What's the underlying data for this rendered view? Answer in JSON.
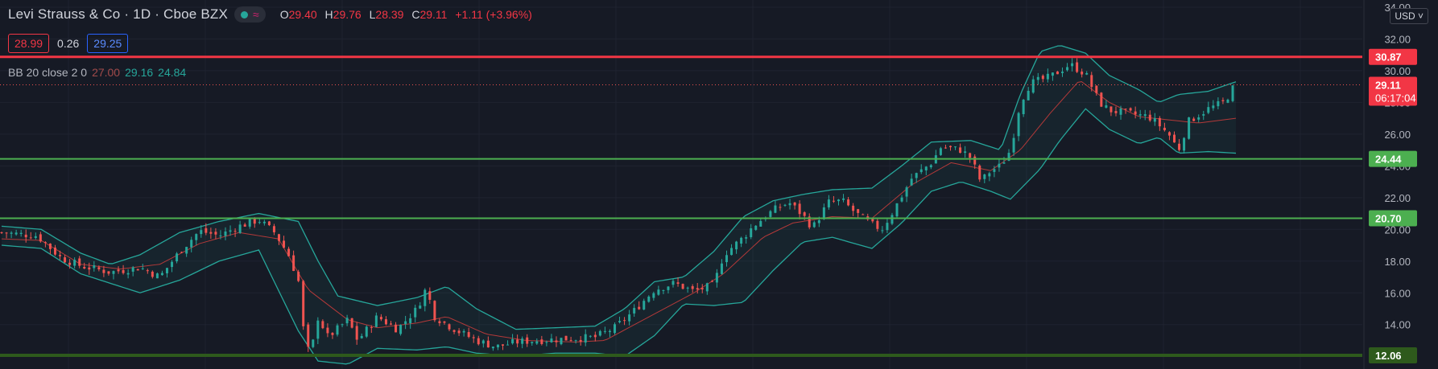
{
  "header": {
    "symbol": "Levi Strauss & Co · 1D · Cboe BZX",
    "status_icon": "market-status-dot-icon",
    "wave_icon": "wave-icon",
    "o_label": "O",
    "o_value": "29.40",
    "h_label": "H",
    "h_value": "29.76",
    "l_label": "L",
    "l_value": "28.39",
    "c_label": "C",
    "c_value": "29.11",
    "change": "+1.11 (+3.96%)"
  },
  "quote": {
    "bid": "28.99",
    "spread": "0.26",
    "ask": "29.25"
  },
  "indicator": {
    "name": "BB 20 close 2 0",
    "basis": "27.00",
    "upper": "29.16",
    "lower": "24.84"
  },
  "currency": "USD",
  "colors": {
    "background": "#161a25",
    "up": "#26a69a",
    "down": "#ef5350",
    "resistance": "#f23645",
    "support": "#4caf50",
    "support_dark": "#2e5a1c",
    "bb_band": "#26a69a",
    "bb_basis": "#b33939"
  },
  "price_tags": [
    {
      "value": 30.87,
      "label": "30.87",
      "color": "#f23645",
      "kind": "line"
    },
    {
      "value": 24.44,
      "label": "24.44",
      "color": "#4caf50",
      "kind": "line"
    },
    {
      "value": 20.7,
      "label": "20.70",
      "color": "#4caf50",
      "kind": "line"
    },
    {
      "value": 12.06,
      "label": "12.06",
      "color": "#2e5a1c",
      "kind": "line"
    }
  ],
  "last_price": {
    "value": 29.11,
    "label": "29.11",
    "countdown": "06:17:04"
  },
  "chart_data": {
    "type": "candlestick",
    "y_ticks": [
      "34.00",
      "32.00",
      "30.00",
      "28.00",
      "26.00",
      "24.00",
      "22.00",
      "20.00",
      "18.00",
      "16.00",
      "14.00",
      "12.00"
    ],
    "ylim": [
      11.2,
      34.2
    ],
    "grid": true,
    "close_path": [
      [
        0,
        19.8
      ],
      [
        18,
        19.6
      ],
      [
        30,
        18.2
      ],
      [
        40,
        17.7
      ],
      [
        55,
        17.3
      ],
      [
        70,
        17.6
      ],
      [
        80,
        17.0
      ],
      [
        90,
        18.6
      ],
      [
        100,
        19.9
      ],
      [
        110,
        19.6
      ],
      [
        120,
        20.2
      ],
      [
        130,
        20.6
      ],
      [
        138,
        19.8
      ],
      [
        145,
        18.4
      ],
      [
        150,
        16.8
      ],
      [
        153,
        13.2
      ],
      [
        156,
        12.0
      ],
      [
        160,
        14.5
      ],
      [
        165,
        13.2
      ],
      [
        175,
        14.3
      ],
      [
        180,
        13.0
      ],
      [
        190,
        14.5
      ],
      [
        200,
        13.7
      ],
      [
        210,
        15.0
      ],
      [
        215,
        16.4
      ],
      [
        218,
        14.6
      ],
      [
        225,
        14.0
      ],
      [
        232,
        13.5
      ],
      [
        240,
        13.0
      ],
      [
        250,
        12.6
      ],
      [
        260,
        12.9
      ],
      [
        270,
        13.0
      ],
      [
        285,
        13.1
      ],
      [
        300,
        13.2
      ],
      [
        310,
        13.8
      ],
      [
        320,
        14.9
      ],
      [
        330,
        16.2
      ],
      [
        340,
        16.6
      ],
      [
        350,
        16.1
      ],
      [
        360,
        16.5
      ],
      [
        365,
        18.4
      ],
      [
        375,
        19.5
      ],
      [
        380,
        20.2
      ],
      [
        390,
        21.2
      ],
      [
        398,
        21.7
      ],
      [
        405,
        20.9
      ],
      [
        410,
        20.1
      ],
      [
        418,
        21.7
      ],
      [
        425,
        21.8
      ],
      [
        432,
        21.0
      ],
      [
        440,
        20.3
      ],
      [
        445,
        20.0
      ],
      [
        450,
        21.0
      ],
      [
        460,
        23.2
      ],
      [
        470,
        24.2
      ],
      [
        475,
        25.2
      ],
      [
        485,
        25.0
      ],
      [
        490,
        24.5
      ],
      [
        495,
        23.0
      ],
      [
        500,
        23.7
      ],
      [
        505,
        24.0
      ],
      [
        510,
        25.0
      ],
      [
        515,
        28.0
      ],
      [
        520,
        29.2
      ],
      [
        530,
        29.6
      ],
      [
        540,
        30.4
      ],
      [
        548,
        29.8
      ],
      [
        555,
        28.0
      ],
      [
        560,
        27.5
      ],
      [
        570,
        27.3
      ],
      [
        580,
        27.1
      ],
      [
        585,
        26.6
      ],
      [
        590,
        26.0
      ],
      [
        595,
        25.0
      ],
      [
        600,
        26.8
      ],
      [
        610,
        27.6
      ],
      [
        618,
        28.0
      ],
      [
        624,
        29.2
      ]
    ],
    "bb_upper": [
      [
        0,
        20.2
      ],
      [
        20,
        20.0
      ],
      [
        40,
        18.5
      ],
      [
        55,
        17.8
      ],
      [
        70,
        18.4
      ],
      [
        90,
        19.8
      ],
      [
        110,
        20.5
      ],
      [
        130,
        21.0
      ],
      [
        150,
        20.5
      ],
      [
        160,
        18.0
      ],
      [
        170,
        15.8
      ],
      [
        190,
        15.2
      ],
      [
        210,
        15.7
      ],
      [
        225,
        16.4
      ],
      [
        240,
        15.0
      ],
      [
        260,
        13.7
      ],
      [
        280,
        13.8
      ],
      [
        300,
        13.9
      ],
      [
        315,
        15.0
      ],
      [
        330,
        16.7
      ],
      [
        345,
        17.0
      ],
      [
        360,
        18.6
      ],
      [
        375,
        20.8
      ],
      [
        390,
        21.8
      ],
      [
        405,
        22.2
      ],
      [
        420,
        22.5
      ],
      [
        440,
        22.6
      ],
      [
        455,
        24.0
      ],
      [
        470,
        25.5
      ],
      [
        490,
        25.6
      ],
      [
        505,
        25.0
      ],
      [
        515,
        28.5
      ],
      [
        525,
        31.2
      ],
      [
        535,
        31.6
      ],
      [
        548,
        31.1
      ],
      [
        560,
        29.7
      ],
      [
        575,
        28.8
      ],
      [
        585,
        28.0
      ],
      [
        595,
        28.5
      ],
      [
        610,
        28.7
      ],
      [
        624,
        29.3
      ]
    ],
    "bb_lower": [
      [
        0,
        19.0
      ],
      [
        20,
        18.8
      ],
      [
        40,
        17.2
      ],
      [
        55,
        16.6
      ],
      [
        70,
        16.0
      ],
      [
        90,
        16.8
      ],
      [
        110,
        18.0
      ],
      [
        130,
        18.7
      ],
      [
        150,
        13.6
      ],
      [
        160,
        11.7
      ],
      [
        175,
        11.5
      ],
      [
        190,
        12.5
      ],
      [
        210,
        12.4
      ],
      [
        225,
        12.6
      ],
      [
        240,
        12.2
      ],
      [
        260,
        12.0
      ],
      [
        280,
        12.2
      ],
      [
        300,
        12.2
      ],
      [
        315,
        12.0
      ],
      [
        330,
        13.3
      ],
      [
        345,
        15.3
      ],
      [
        360,
        15.2
      ],
      [
        375,
        15.4
      ],
      [
        390,
        17.4
      ],
      [
        405,
        19.2
      ],
      [
        420,
        19.5
      ],
      [
        440,
        18.8
      ],
      [
        455,
        20.4
      ],
      [
        470,
        22.4
      ],
      [
        485,
        23.0
      ],
      [
        500,
        22.4
      ],
      [
        510,
        21.9
      ],
      [
        525,
        23.8
      ],
      [
        535,
        25.6
      ],
      [
        548,
        27.6
      ],
      [
        560,
        26.3
      ],
      [
        575,
        25.4
      ],
      [
        585,
        25.8
      ],
      [
        595,
        24.8
      ],
      [
        610,
        24.9
      ],
      [
        624,
        24.8
      ]
    ],
    "bb_basis": [
      [
        0,
        19.4
      ],
      [
        20,
        19.3
      ],
      [
        40,
        17.8
      ],
      [
        60,
        17.5
      ],
      [
        80,
        17.8
      ],
      [
        100,
        19.1
      ],
      [
        120,
        19.8
      ],
      [
        140,
        19.4
      ],
      [
        155,
        16.2
      ],
      [
        175,
        14.3
      ],
      [
        190,
        13.8
      ],
      [
        210,
        14.1
      ],
      [
        225,
        14.5
      ],
      [
        245,
        13.4
      ],
      [
        265,
        13.0
      ],
      [
        290,
        12.9
      ],
      [
        305,
        13.0
      ],
      [
        320,
        14.0
      ],
      [
        335,
        15.0
      ],
      [
        350,
        16.0
      ],
      [
        365,
        17.2
      ],
      [
        385,
        19.5
      ],
      [
        400,
        20.4
      ],
      [
        420,
        20.8
      ],
      [
        440,
        20.7
      ],
      [
        460,
        22.8
      ],
      [
        480,
        24.2
      ],
      [
        500,
        23.7
      ],
      [
        515,
        25.0
      ],
      [
        530,
        27.3
      ],
      [
        545,
        29.4
      ],
      [
        560,
        28.0
      ],
      [
        575,
        27.1
      ],
      [
        590,
        26.9
      ],
      [
        605,
        26.7
      ],
      [
        624,
        27.0
      ]
    ]
  }
}
